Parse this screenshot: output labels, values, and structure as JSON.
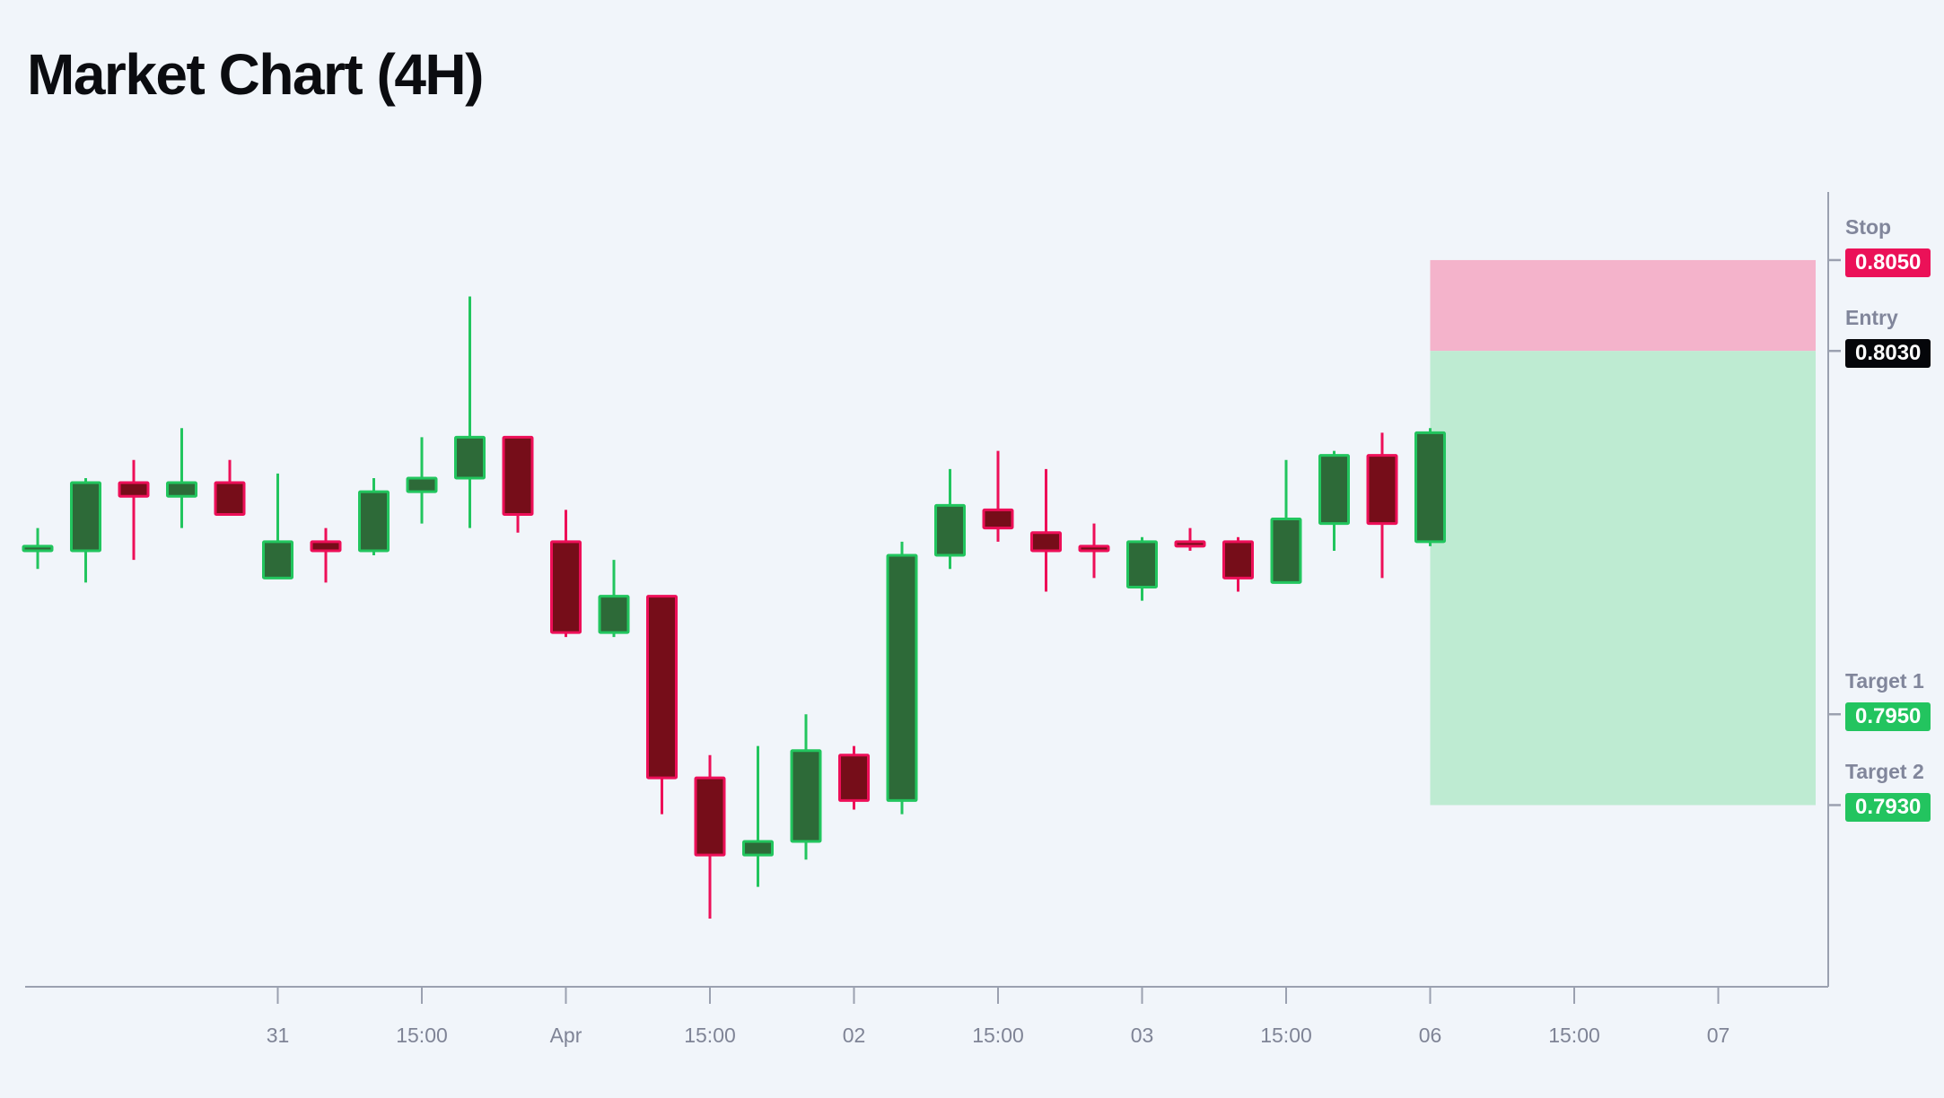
{
  "title": "Market Chart (4H)",
  "chart_data": {
    "type": "candlestick",
    "title": "Market Chart (4H)",
    "timeframe": "4H",
    "background": "#f1f5fa",
    "grid": false,
    "axis": {
      "line_color": "#9ba1b0",
      "tick_label_color": "#7f8496",
      "y_domain_top": 0.8065,
      "y_domain_bottom": 0.789,
      "x_ticks": [
        {
          "label": "31",
          "slot": 5
        },
        {
          "label": "15:00",
          "slot": 8
        },
        {
          "label": "Apr",
          "slot": 11
        },
        {
          "label": "15:00",
          "slot": 14
        },
        {
          "label": "02",
          "slot": 17
        },
        {
          "label": "15:00",
          "slot": 20
        },
        {
          "label": "03",
          "slot": 23
        },
        {
          "label": "15:00",
          "slot": 26
        },
        {
          "label": "06",
          "slot": 29
        },
        {
          "label": "15:00",
          "slot": 32
        },
        {
          "label": "07",
          "slot": 35
        }
      ]
    },
    "style": {
      "bull_border": "#22c55e",
      "bull_fill": "#2d6a38",
      "bear_border": "#ed0f58",
      "bear_fill": "#760d19",
      "label_color": "#81869b"
    },
    "candles_ohlc": [
      {
        "open": 0.7986,
        "high": 0.7991,
        "low": 0.7982,
        "close": 0.7987
      },
      {
        "open": 0.7986,
        "high": 0.8002,
        "low": 0.7979,
        "close": 0.8001
      },
      {
        "open": 0.8001,
        "high": 0.8006,
        "low": 0.7984,
        "close": 0.7998
      },
      {
        "open": 0.7998,
        "high": 0.8013,
        "low": 0.7991,
        "close": 0.8001
      },
      {
        "open": 0.8001,
        "high": 0.8006,
        "low": 0.7994,
        "close": 0.7994
      },
      {
        "open": 0.798,
        "high": 0.8003,
        "low": 0.798,
        "close": 0.7988
      },
      {
        "open": 0.7988,
        "high": 0.7991,
        "low": 0.7979,
        "close": 0.7986
      },
      {
        "open": 0.7986,
        "high": 0.8002,
        "low": 0.7985,
        "close": 0.7999
      },
      {
        "open": 0.7999,
        "high": 0.8011,
        "low": 0.7992,
        "close": 0.8002
      },
      {
        "open": 0.8002,
        "high": 0.8042,
        "low": 0.7991,
        "close": 0.8011
      },
      {
        "open": 0.8011,
        "high": 0.8011,
        "low": 0.799,
        "close": 0.7994
      },
      {
        "open": 0.7988,
        "high": 0.7995,
        "low": 0.7967,
        "close": 0.7968
      },
      {
        "open": 0.7968,
        "high": 0.7984,
        "low": 0.7967,
        "close": 0.7976
      },
      {
        "open": 0.7976,
        "high": 0.7976,
        "low": 0.7928,
        "close": 0.7936
      },
      {
        "open": 0.7936,
        "high": 0.7941,
        "low": 0.7905,
        "close": 0.7919
      },
      {
        "open": 0.7919,
        "high": 0.7943,
        "low": 0.7912,
        "close": 0.7922
      },
      {
        "open": 0.7922,
        "high": 0.795,
        "low": 0.7918,
        "close": 0.7942
      },
      {
        "open": 0.7941,
        "high": 0.7943,
        "low": 0.7929,
        "close": 0.7931
      },
      {
        "open": 0.7931,
        "high": 0.7988,
        "low": 0.7928,
        "close": 0.7985
      },
      {
        "open": 0.7985,
        "high": 0.8004,
        "low": 0.7982,
        "close": 0.7996
      },
      {
        "open": 0.7995,
        "high": 0.8008,
        "low": 0.7988,
        "close": 0.7991
      },
      {
        "open": 0.799,
        "high": 0.8004,
        "low": 0.7977,
        "close": 0.7986
      },
      {
        "open": 0.7987,
        "high": 0.7992,
        "low": 0.798,
        "close": 0.7986
      },
      {
        "open": 0.7978,
        "high": 0.7989,
        "low": 0.7975,
        "close": 0.7988
      },
      {
        "open": 0.7988,
        "high": 0.7991,
        "low": 0.7986,
        "close": 0.7987
      },
      {
        "open": 0.7988,
        "high": 0.7989,
        "low": 0.7977,
        "close": 0.798
      },
      {
        "open": 0.7979,
        "high": 0.8006,
        "low": 0.7979,
        "close": 0.7993
      },
      {
        "open": 0.7992,
        "high": 0.8008,
        "low": 0.7986,
        "close": 0.8007
      },
      {
        "open": 0.8007,
        "high": 0.8012,
        "low": 0.798,
        "close": 0.7992
      },
      {
        "open": 0.7988,
        "high": 0.8013,
        "low": 0.7987,
        "close": 0.8012
      }
    ],
    "levels": [
      {
        "id": "stop",
        "name": "Stop",
        "value": "0.8050",
        "price": 0.805,
        "badge_color": "#eb1158",
        "text_color": "#ffffff"
      },
      {
        "id": "entry",
        "name": "Entry",
        "value": "0.8030",
        "price": 0.803,
        "badge_color": "#05060a",
        "text_color": "#ffffff"
      },
      {
        "id": "target1",
        "name": "Target 1",
        "value": "0.7950",
        "price": 0.795,
        "badge_color": "#23c45f",
        "text_color": "#ffffff"
      },
      {
        "id": "target2",
        "name": "Target 2",
        "value": "0.7930",
        "price": 0.793,
        "badge_color": "#23c45f",
        "text_color": "#ffffff"
      }
    ],
    "zones": [
      {
        "name": "risk",
        "from_price": 0.805,
        "to_price": 0.803,
        "color": "#f4b3cb"
      },
      {
        "name": "reward",
        "from_price": 0.803,
        "to_price": 0.793,
        "color": "#beebd2"
      }
    ]
  }
}
